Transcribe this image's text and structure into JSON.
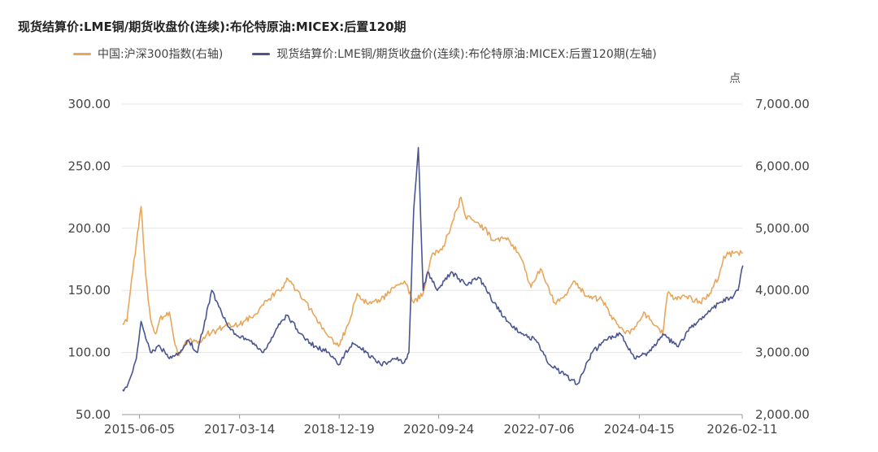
{
  "title": "现货结算价:LME铜/期货收盘价(连续):布伦特原油:MICEX:后置120期",
  "unit_label": "点",
  "colors": {
    "left_series": "#4a5590",
    "right_series": "#e8a65a",
    "grid": "#e6e6e6",
    "axis": "#999999"
  },
  "chart_data": {
    "type": "line",
    "title": "现货结算价:LME铜/期货收盘价(连续):布伦特原油:MICEX:后置120期",
    "x_tick_labels": [
      "2015-06-05",
      "2017-03-14",
      "2018-12-19",
      "2020-09-24",
      "2022-07-06",
      "2024-04-15",
      "2026-02-11"
    ],
    "x_range": [
      "2015-02-11",
      "2026-02-11"
    ],
    "left_axis": {
      "range": [
        50,
        300
      ],
      "ticks": [
        "50.00",
        "100.00",
        "150.00",
        "200.00",
        "250.00",
        "300.00"
      ]
    },
    "right_axis": {
      "range": [
        2000,
        7000
      ],
      "ticks": [
        "2,000.00",
        "3,000.00",
        "4,000.00",
        "5,000.00",
        "6,000.00",
        "7,000.00"
      ],
      "unit": "点"
    },
    "grid": true,
    "legend_position": "top",
    "series": [
      {
        "name": "中国:沪深300指数(右轴)",
        "axis": "right",
        "color": "#e8a65a",
        "x": [
          "2015-02",
          "2015-03",
          "2015-04",
          "2015-05",
          "2015-06",
          "2015-07",
          "2015-08",
          "2015-09",
          "2015-10",
          "2015-12",
          "2016-01",
          "2016-02",
          "2016-04",
          "2016-06",
          "2016-08",
          "2016-10",
          "2016-12",
          "2017-03",
          "2017-06",
          "2017-09",
          "2017-12",
          "2018-01",
          "2018-03",
          "2018-06",
          "2018-09",
          "2018-12",
          "2019-02",
          "2019-04",
          "2019-06",
          "2019-09",
          "2019-12",
          "2020-02",
          "2020-04",
          "2020-06",
          "2020-08",
          "2020-10",
          "2020-12",
          "2021-02",
          "2021-03",
          "2021-05",
          "2021-07",
          "2021-09",
          "2021-12",
          "2022-03",
          "2022-05",
          "2022-07",
          "2022-10",
          "2022-12",
          "2023-02",
          "2023-05",
          "2023-08",
          "2023-10",
          "2023-12",
          "2024-02",
          "2024-05",
          "2024-07",
          "2024-09",
          "2024-10",
          "2024-12",
          "2025-02",
          "2025-05",
          "2025-07",
          "2025-09",
          "2025-10",
          "2025-12",
          "2026-02"
        ],
        "values": [
          3450,
          3500,
          4200,
          4750,
          5350,
          4250,
          3550,
          3300,
          3550,
          3650,
          3200,
          2950,
          3200,
          3150,
          3300,
          3350,
          3450,
          3450,
          3600,
          3850,
          4050,
          4200,
          4000,
          3700,
          3350,
          3100,
          3450,
          3950,
          3800,
          3850,
          4050,
          4150,
          3800,
          3950,
          4600,
          4650,
          5050,
          5500,
          5200,
          5100,
          5000,
          4800,
          4850,
          4500,
          4050,
          4350,
          3800,
          3900,
          4150,
          3900,
          3850,
          3600,
          3400,
          3300,
          3650,
          3450,
          3300,
          3950,
          3850,
          3900,
          3800,
          3950,
          4250,
          4550,
          4600,
          4600
        ]
      },
      {
        "name": "现货结算价:LME铜/期货收盘价(连续):布伦特原油:MICEX:后置120期(左轴)",
        "axis": "left",
        "color": "#4a5590",
        "x": [
          "2015-02",
          "2015-03",
          "2015-05",
          "2015-06",
          "2015-08",
          "2015-10",
          "2015-12",
          "2016-02",
          "2016-04",
          "2016-06",
          "2016-09",
          "2016-12",
          "2017-02",
          "2017-05",
          "2017-08",
          "2017-11",
          "2018-01",
          "2018-04",
          "2018-07",
          "2018-10",
          "2018-12",
          "2019-03",
          "2019-06",
          "2019-09",
          "2019-12",
          "2020-02",
          "2020-03",
          "2020-04",
          "2020-05",
          "2020-06",
          "2020-07",
          "2020-09",
          "2020-12",
          "2021-03",
          "2021-06",
          "2021-09",
          "2021-12",
          "2022-03",
          "2022-06",
          "2022-09",
          "2022-12",
          "2023-03",
          "2023-06",
          "2023-09",
          "2023-12",
          "2024-03",
          "2024-06",
          "2024-09",
          "2024-12",
          "2025-03",
          "2025-06",
          "2025-09",
          "2025-12",
          "2026-01",
          "2026-02"
        ],
        "values": [
          70,
          72,
          95,
          125,
          100,
          105,
          95,
          100,
          110,
          100,
          150,
          125,
          115,
          110,
          100,
          120,
          130,
          115,
          105,
          100,
          90,
          108,
          100,
          90,
          95,
          92,
          100,
          215,
          265,
          150,
          165,
          150,
          165,
          155,
          160,
          140,
          125,
          115,
          110,
          90,
          82,
          75,
          100,
          110,
          115,
          95,
          100,
          115,
          105,
          120,
          130,
          140,
          145,
          150,
          170
        ]
      }
    ]
  }
}
